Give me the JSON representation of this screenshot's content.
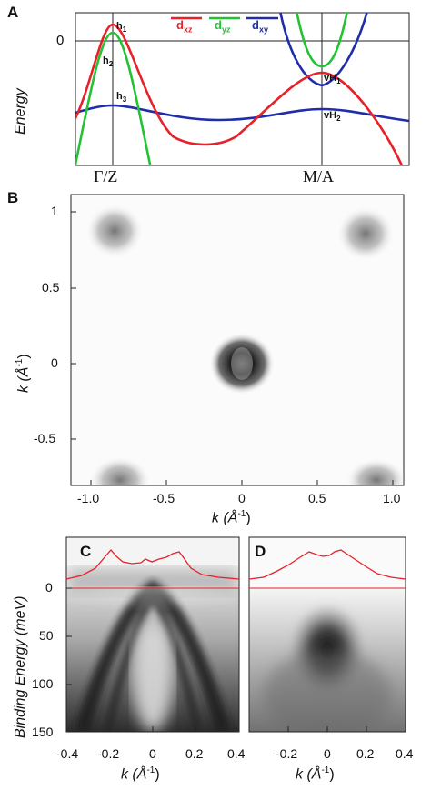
{
  "panel_a": {
    "letter": "A",
    "ylabel": "Energy",
    "zero_tick": "0",
    "legend": [
      "d",
      "d",
      "d"
    ],
    "legend_sub": [
      "xz",
      "yz",
      "xy"
    ],
    "band_labels": [
      "h",
      "h",
      "h",
      "vH",
      "vH"
    ],
    "band_label_sub": [
      "1",
      "2",
      "3",
      "1",
      "2"
    ],
    "xticks": [
      "Γ/Z",
      "M/A"
    ],
    "colors": {
      "dxz": "#e8202a",
      "dyz": "#22c232",
      "dxy": "#1f2ea8"
    }
  },
  "panel_b": {
    "letter": "B",
    "ylabel": "k  (Å",
    "ylabel_sup": "-1",
    "ylabel_end": ")",
    "xlabel": "k  (Å",
    "xlabel_sup": "-1",
    "xlabel_end": ")",
    "yticks": [
      "1",
      "0.5",
      "0",
      "-0.5"
    ],
    "xticks": [
      "-1.0",
      "-0.5",
      "0",
      "0.5",
      "1.0"
    ]
  },
  "panel_c": {
    "letter": "C",
    "xticks": [
      "-0.4",
      "-0.2",
      "0",
      "0.2",
      "0.4"
    ],
    "xlabel": "k  (Å",
    "xlabel_sup": "-1",
    "xlabel_end": ")"
  },
  "panel_d": {
    "letter": "D",
    "xticks": [
      "-0.2",
      "0",
      "0.2",
      "0.4"
    ],
    "xlabel": "k  (Å",
    "xlabel_sup": "-1",
    "xlabel_end": ")"
  },
  "shared_cd": {
    "ylabel": "Binding Energy  (meV)",
    "yticks": [
      "0",
      "50",
      "100",
      "150"
    ]
  }
}
